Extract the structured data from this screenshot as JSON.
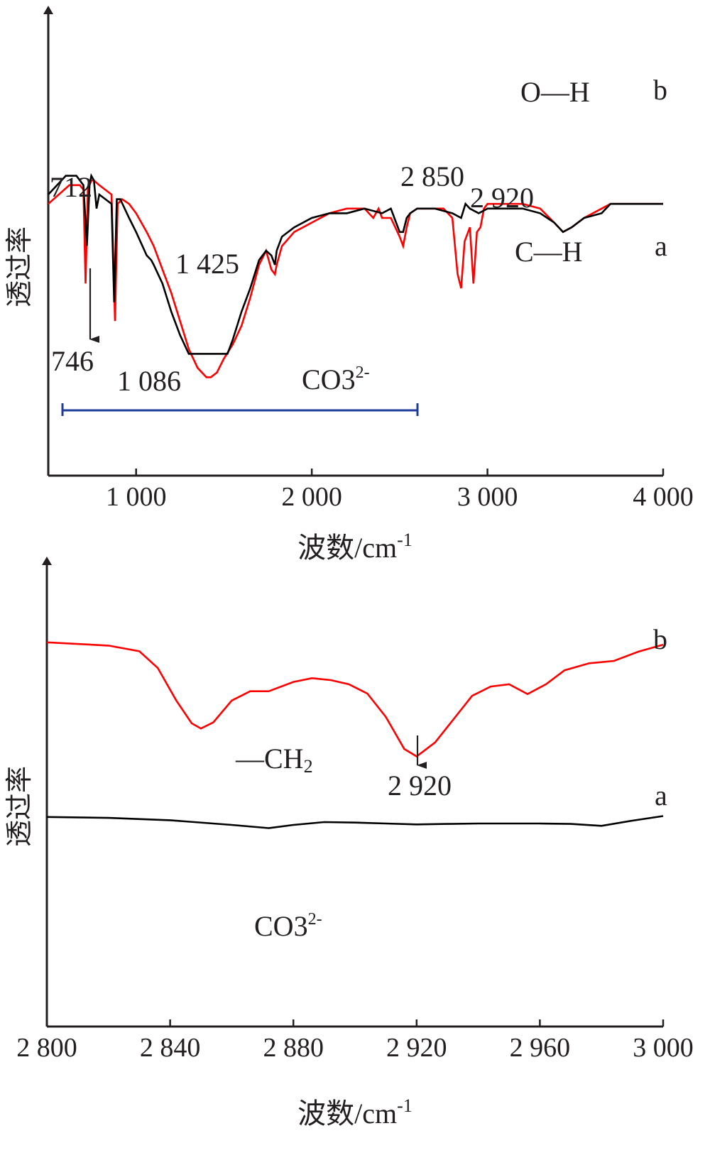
{
  "chart_data": [
    {
      "type": "line",
      "xlabel": "波数/cm",
      "xlabel_sup": "-1",
      "ylabel": "透过率",
      "xlim": [
        500,
        4000
      ],
      "x_ticks": [
        1000,
        2000,
        3000,
        4000
      ],
      "x_tick_labels": [
        "1 000",
        "2 000",
        "3 000",
        "4 000"
      ],
      "series": [
        {
          "name": "b",
          "color": "#ff0000",
          "x": [
            500,
            620,
            680,
            700,
            712,
            725,
            745,
            760,
            790,
            860,
            880,
            895,
            920,
            960,
            1000,
            1060,
            1100,
            1150,
            1200,
            1250,
            1300,
            1350,
            1400,
            1425,
            1460,
            1500,
            1550,
            1600,
            1650,
            1700,
            1740,
            1770,
            1790,
            1800,
            1830,
            1900,
            2000,
            2100,
            2200,
            2300,
            2350,
            2380,
            2400,
            2450,
            2500,
            2520,
            2540,
            2560,
            2600,
            2700,
            2750,
            2800,
            2830,
            2850,
            2870,
            2900,
            2920,
            2940,
            2960,
            2980,
            3000,
            3100,
            3200,
            3300,
            3380,
            3430,
            3480,
            3550,
            3650,
            3700,
            3800,
            3900,
            4000
          ],
          "y": [
            58,
            62,
            62,
            61,
            41,
            61,
            63,
            63,
            62,
            60,
            33,
            58,
            59,
            58,
            56,
            52,
            49,
            44,
            39,
            33,
            27,
            23,
            21,
            21,
            22,
            25,
            28,
            32,
            38,
            45,
            48,
            44,
            43,
            45,
            49,
            52,
            54,
            56,
            57,
            57,
            55,
            57,
            55,
            55,
            51,
            49,
            53,
            56,
            57,
            57,
            57,
            55,
            43,
            40,
            50,
            53,
            41,
            52,
            53,
            57,
            58,
            58,
            58,
            57,
            54,
            52,
            53,
            55,
            57,
            58,
            58,
            58,
            58
          ]
        },
        {
          "name": "a",
          "color": "#000000",
          "x": [
            500,
            600,
            660,
            700,
            720,
            735,
            745,
            760,
            775,
            790,
            860,
            875,
            890,
            910,
            960,
            1000,
            1060,
            1086,
            1100,
            1150,
            1200,
            1250,
            1300,
            1350,
            1400,
            1450,
            1500,
            1520,
            1550,
            1600,
            1650,
            1700,
            1740,
            1770,
            1790,
            1800,
            1830,
            1900,
            2000,
            2100,
            2200,
            2300,
            2400,
            2450,
            2500,
            2520,
            2540,
            2560,
            2600,
            2700,
            2800,
            2850,
            2875,
            2900,
            2950,
            3000,
            3100,
            3200,
            3300,
            3380,
            3430,
            3480,
            3550,
            3650,
            3700,
            3800,
            3900,
            4000
          ],
          "y": [
            60,
            64,
            64,
            62,
            49,
            62,
            64,
            63,
            57,
            60,
            58,
            37,
            59,
            59,
            55,
            52,
            47,
            46,
            45,
            41,
            35,
            30,
            26,
            26,
            26,
            26,
            26,
            26,
            29,
            35,
            40,
            46,
            48,
            47,
            45,
            48,
            51,
            53,
            55,
            56,
            56,
            57,
            56,
            57,
            52,
            52,
            55,
            56,
            57,
            57,
            56,
            55,
            58,
            57,
            56,
            57,
            57,
            57,
            56,
            54,
            52,
            53,
            55,
            56,
            58,
            58,
            58,
            58
          ]
        }
      ],
      "annotations": [
        "712",
        "2 850",
        "2 920",
        "1 425",
        "746",
        "1 086",
        "O—H",
        "C—H",
        "CO3",
        "2-"
      ],
      "labels": [
        "b",
        "a"
      ]
    },
    {
      "type": "line",
      "xlabel": "波数/cm",
      "xlabel_sup": "-1",
      "ylabel": "透过率",
      "xlim": [
        2800,
        3000
      ],
      "x_ticks": [
        2800,
        2840,
        2880,
        2920,
        2960,
        3000
      ],
      "x_tick_labels": [
        "2 800",
        "2 840",
        "2 880",
        "2 920",
        "2 960",
        "3 000"
      ],
      "series": [
        {
          "name": "b",
          "color": "#ff0000",
          "x": [
            2800,
            2820,
            2830,
            2836,
            2842,
            2847,
            2850,
            2854,
            2860,
            2866,
            2872,
            2880,
            2886,
            2892,
            2898,
            2904,
            2910,
            2916,
            2920,
            2926,
            2932,
            2938,
            2944,
            2950,
            2956,
            2962,
            2968,
            2976,
            2984,
            2992,
            3000
          ],
          "y": [
            82.5,
            81.8,
            80.6,
            77,
            70,
            65.1,
            64,
            65.3,
            70,
            72,
            72,
            74,
            74.8,
            74.4,
            73.5,
            71.5,
            66.5,
            59.6,
            58,
            61,
            66,
            71,
            73,
            73.5,
            71.4,
            73.5,
            76.5,
            78,
            78.5,
            80.5,
            82
          ]
        },
        {
          "name": "a",
          "color": "#000000",
          "x": [
            2800,
            2820,
            2840,
            2860,
            2872,
            2880,
            2890,
            2900,
            2910,
            2920,
            2930,
            2940,
            2950,
            2960,
            2970,
            2980,
            2990,
            3000
          ],
          "y": [
            45,
            44.8,
            44.3,
            43.3,
            42.6,
            43.3,
            43.9,
            43.8,
            43.6,
            43.4,
            43.5,
            43.6,
            43.6,
            43.6,
            43.5,
            43.1,
            44.2,
            45.2
          ]
        }
      ],
      "annotations": [
        "—CH",
        "2",
        "2 920",
        "CO3",
        "2-"
      ],
      "labels": [
        "b",
        "a"
      ]
    }
  ]
}
